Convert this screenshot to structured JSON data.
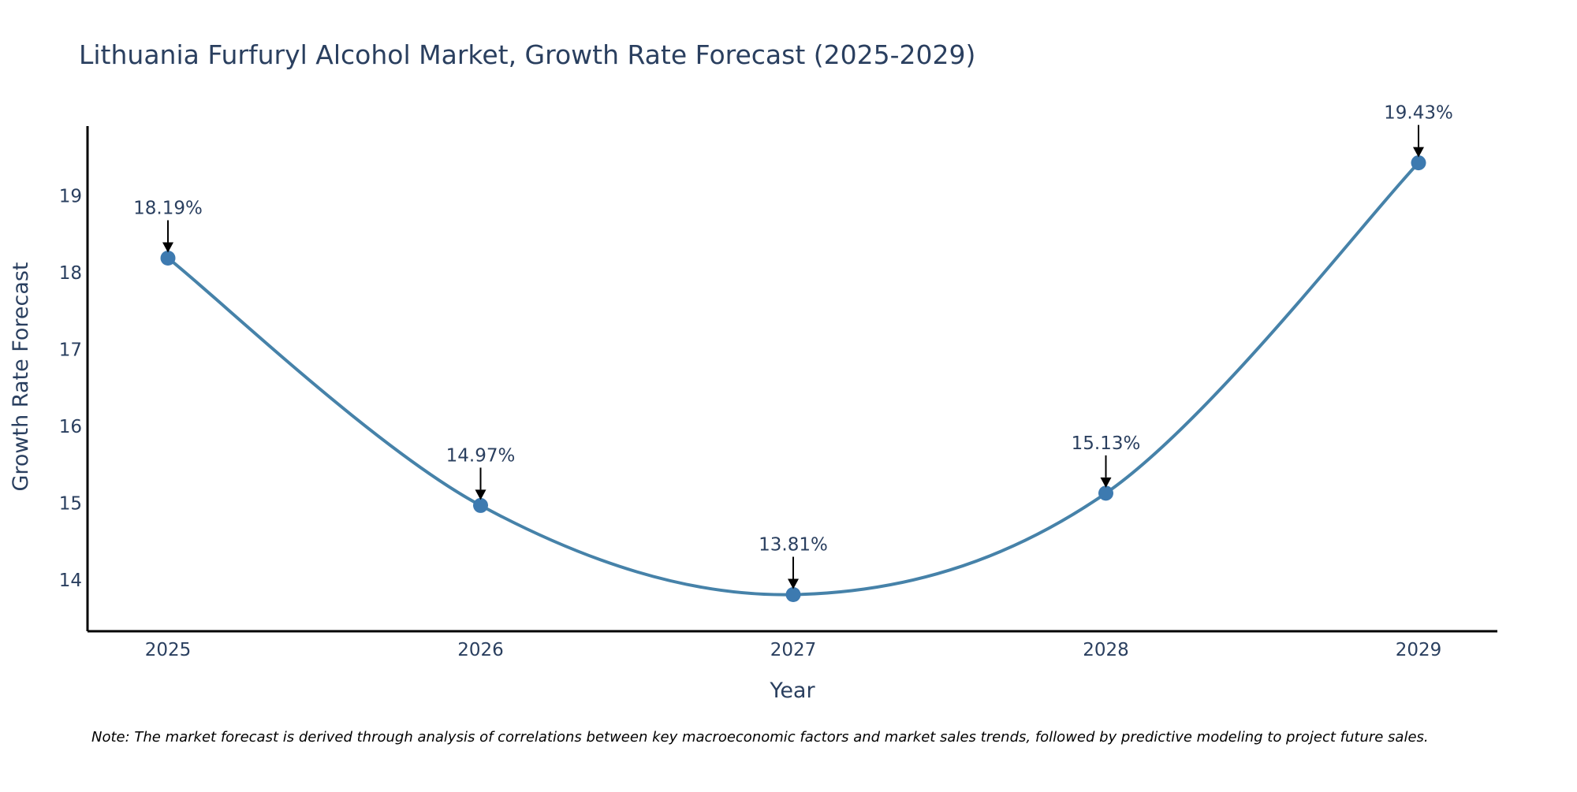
{
  "chart_data": {
    "type": "line",
    "title": "Lithuania Furfuryl Alcohol Market, Growth Rate Forecast (2025-2029)",
    "xlabel": "Year",
    "ylabel": "Growth Rate Forecast",
    "categories": [
      "2025",
      "2026",
      "2027",
      "2028",
      "2029"
    ],
    "series": [
      {
        "name": "Growth Rate Forecast",
        "values": [
          18.19,
          14.97,
          13.81,
          15.13,
          19.43
        ],
        "labels": [
          "18.19%",
          "14.97%",
          "13.81%",
          "15.13%",
          "19.43%"
        ]
      }
    ],
    "yticks": [
      14,
      15,
      16,
      17,
      18,
      19
    ],
    "ylim": [
      13.3,
      19.9
    ],
    "grid": false,
    "line_shape": "spline",
    "colors": {
      "line": "#4682a9",
      "marker": "#3d7ab0",
      "arrow": "#000000",
      "axis": "#000000",
      "text": "#2a3f5f"
    },
    "note": "Note: The market forecast is derived through analysis of correlations between key macroeconomic factors and market sales trends, followed by predictive modeling to project future sales."
  }
}
